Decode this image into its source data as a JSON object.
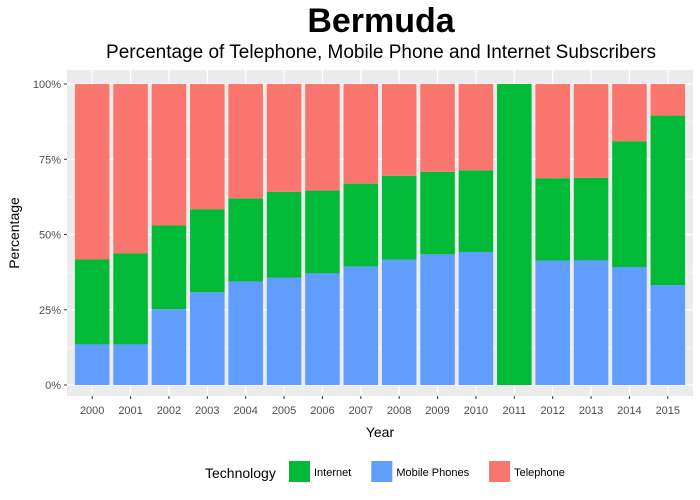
{
  "chart_data": {
    "type": "bar",
    "stacked": true,
    "title": "Bermuda",
    "subtitle": "Percentage of Telephone, Mobile Phone and Internet Subscribers",
    "xlabel": "Year",
    "ylabel": "Percentage",
    "ylim": [
      0,
      100
    ],
    "y_ticks": [
      "0%",
      "25%",
      "50%",
      "75%",
      "100%"
    ],
    "y_tick_values": [
      0,
      25,
      50,
      75,
      100
    ],
    "grid": true,
    "legend_title": "Technology",
    "legend_position": "bottom",
    "categories": [
      "2000",
      "2001",
      "2002",
      "2003",
      "2004",
      "2005",
      "2006",
      "2007",
      "2008",
      "2009",
      "2010",
      "2011",
      "2012",
      "2013",
      "2014",
      "2015"
    ],
    "series": [
      {
        "name": "Mobile Phones",
        "color": "#619CFF",
        "values": [
          13.5,
          13.5,
          25.2,
          30.8,
          34.4,
          35.7,
          37.1,
          39.4,
          41.7,
          43.4,
          44.2,
          0,
          41.3,
          41.4,
          39.2,
          33.2
        ]
      },
      {
        "name": "Internet",
        "color": "#00BA38",
        "values": [
          28.2,
          30.2,
          27.8,
          27.6,
          27.6,
          28.5,
          27.5,
          27.5,
          27.8,
          27.4,
          27.1,
          100,
          27.4,
          27.4,
          41.8,
          56.3
        ]
      },
      {
        "name": "Telephone",
        "color": "#F8766D",
        "values": [
          58.3,
          56.3,
          47.0,
          41.6,
          38.0,
          35.8,
          35.4,
          33.1,
          30.5,
          29.2,
          28.7,
          0,
          31.3,
          31.2,
          19.0,
          10.5
        ]
      }
    ],
    "legend_order": [
      "Internet",
      "Mobile Phones",
      "Telephone"
    ]
  }
}
